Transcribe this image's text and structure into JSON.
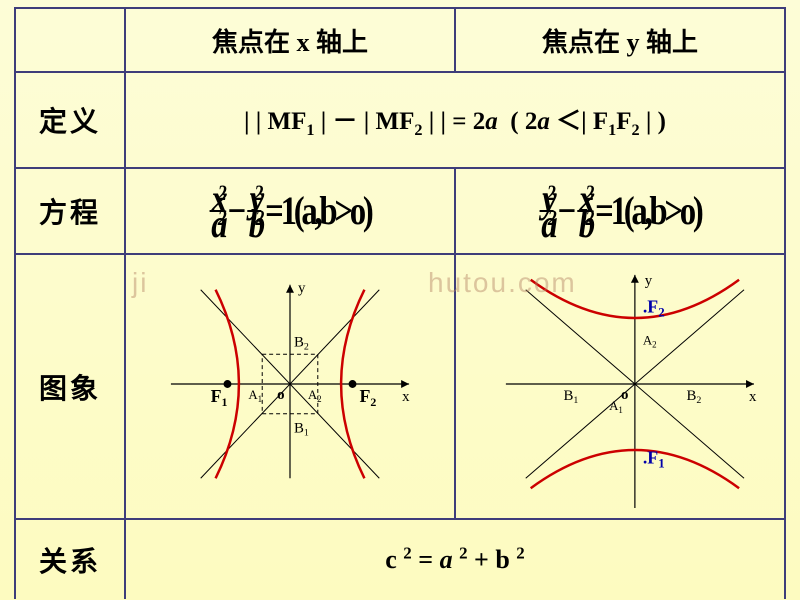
{
  "header": {
    "col_x": "焦点在 x 轴上",
    "col_y": "焦点在 y 轴上",
    "blank_cell_border_color": "#3e3d7a"
  },
  "rows": {
    "definition": {
      "label": "定义",
      "formula_html": "| | MF<sub>1</sub> | － | MF<sub>2</sub> | | = 2<span class='ital'>a</span>&nbsp; ( 2<span class='ital'>a</span> ＜| F<sub>1</sub>F<sub>2</sub> | )"
    },
    "equation": {
      "label": "方程",
      "x_axis_eq": {
        "term1_top": "x",
        "term1_bot": "a",
        "term2_top": "y",
        "term2_bot": "b",
        "tail": "=1(a,b>o)"
      },
      "y_axis_eq": {
        "term1_top": "y",
        "term1_bot": "a",
        "term2_top": "x",
        "term2_bot": "b",
        "tail": "=1(a,b>o)"
      }
    },
    "graph": {
      "label": "图象",
      "x_graph": {
        "axis_labels": {
          "x": "x",
          "y": "y",
          "o": "o"
        },
        "foci": [
          "F₁",
          "F₂"
        ],
        "vertices": {
          "A1": "A₁",
          "A2": "A₂",
          "B1": "B₁",
          "B2": "B₂"
        },
        "curve_color": "#cc0000",
        "axis_color": "#000000",
        "asymptote_color": "#000000",
        "box_dash": "3,3",
        "focus_dot_radius": 3
      },
      "y_graph": {
        "axis_labels": {
          "x": "x",
          "y": "y",
          "o": "o"
        },
        "foci": [
          "F₁",
          "F₂"
        ],
        "vertices": {
          "A1": "A₁",
          "A2": "A₂",
          "B1": "B₁",
          "B2": "B₂"
        },
        "curve_color": "#cc0000",
        "axis_color": "#000000",
        "asymptote_color": "#000000",
        "focus_label_color": "#0000aa"
      }
    },
    "relation": {
      "label": "关系",
      "formula_html": "c <sup>2</sup> = <span class='ital'>a</span> <sup>2</sup> + b <sup>2</sup>"
    }
  },
  "watermark": {
    "left": "ji",
    "right": "hutou.com"
  },
  "colors": {
    "page_bg_top": "#fdfdd7",
    "page_bg_bottom": "#fdfbc0",
    "border": "#3e3d7a",
    "text": "#000000"
  }
}
